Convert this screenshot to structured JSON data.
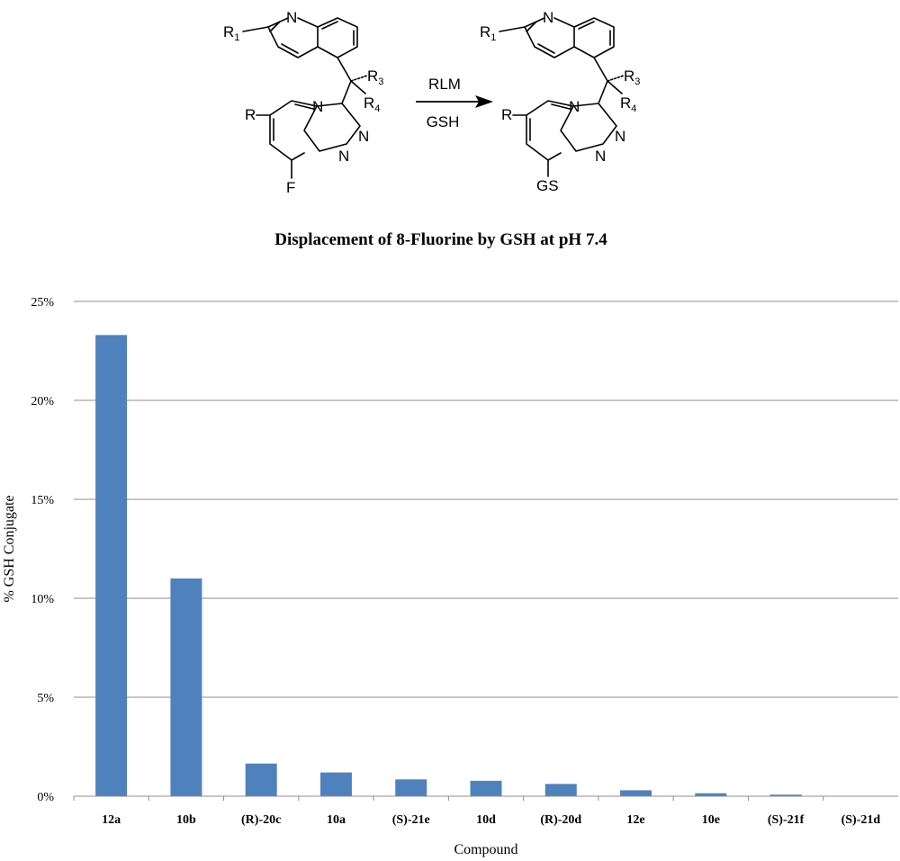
{
  "scheme": {
    "arrow_above": "RLM",
    "arrow_below": "GSH",
    "left": {
      "r1": "R",
      "r1_sub": "1",
      "r3": "R",
      "r3_sub": "3",
      "r4": "R",
      "r4_sub": "4",
      "r": "R",
      "n_quinoline": "N",
      "n1": "N",
      "n2": "N",
      "n3": "N",
      "substituent": "F"
    },
    "right": {
      "r1": "R",
      "r1_sub": "1",
      "r3": "R",
      "r3_sub": "3",
      "r4": "R",
      "r4_sub": "4",
      "r": "R",
      "n_quinoline": "N",
      "n1": "N",
      "n2": "N",
      "n3": "N",
      "substituent": "GS"
    }
  },
  "chart_data": {
    "type": "bar",
    "title": "Displacement of 8-Fluorine by GSH at pH 7.4",
    "xlabel": "Compound",
    "ylabel": "% GSH Conjugate",
    "categories": [
      "12a",
      "10b",
      "(R)-20c",
      "10a",
      "(S)-21e",
      "10d",
      "(R)-20d",
      "12e",
      "10e",
      "(S)-21f",
      "(S)-21d"
    ],
    "values": [
      23.3,
      11.0,
      1.65,
      1.2,
      0.85,
      0.78,
      0.62,
      0.3,
      0.15,
      0.08,
      0.0
    ],
    "ylim": [
      0,
      25
    ],
    "yticks": [
      0,
      5,
      10,
      15,
      20,
      25
    ],
    "ytick_labels": [
      "0%",
      "5%",
      "10%",
      "15%",
      "20%",
      "25%"
    ],
    "grid": true,
    "legend": "none",
    "bar_color": "#4f81bd"
  }
}
